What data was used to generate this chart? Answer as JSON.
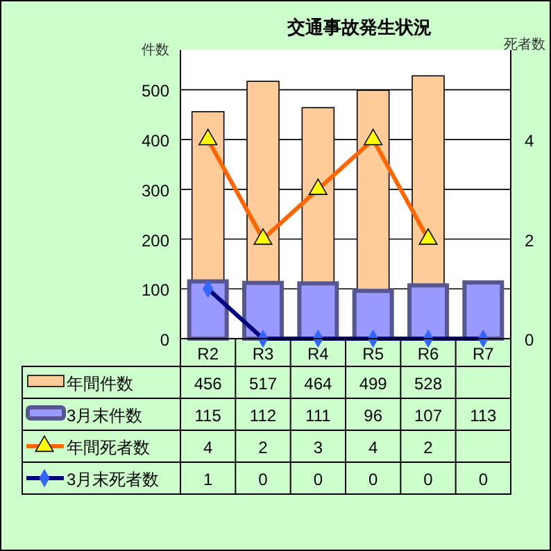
{
  "chart_data": {
    "type": "bar",
    "title": "交通事故発生状況",
    "ylabel": "件数",
    "y2label": "死者数",
    "categories": [
      "R2",
      "R3",
      "R4",
      "R5",
      "R6",
      "R7"
    ],
    "series": [
      {
        "name": "年間件数",
        "color": "#ffcc99",
        "values": [
          456,
          517,
          464,
          499,
          528,
          null
        ]
      },
      {
        "name": "3月末件数",
        "color": "#9999ff",
        "values": [
          115,
          112,
          111,
          96,
          107,
          113
        ]
      },
      {
        "name": "年間死者数",
        "type": "line",
        "axis": "y2",
        "color": "#ff6600",
        "marker": "triangle",
        "values": [
          4,
          2,
          3,
          4,
          2,
          null
        ]
      },
      {
        "name": "3月末死者数",
        "type": "line",
        "axis": "y2",
        "color": "#000080",
        "marker": "diamond",
        "values": [
          1,
          0,
          0,
          0,
          0,
          0
        ]
      }
    ],
    "ylim": [
      0,
      580
    ],
    "yticks": [
      0,
      100,
      200,
      300,
      400,
      500
    ],
    "y2lim": [
      0,
      5.8
    ],
    "y2ticks": [
      0,
      2,
      4
    ],
    "grid": "y",
    "legend": "bottom",
    "data_labels": true
  }
}
